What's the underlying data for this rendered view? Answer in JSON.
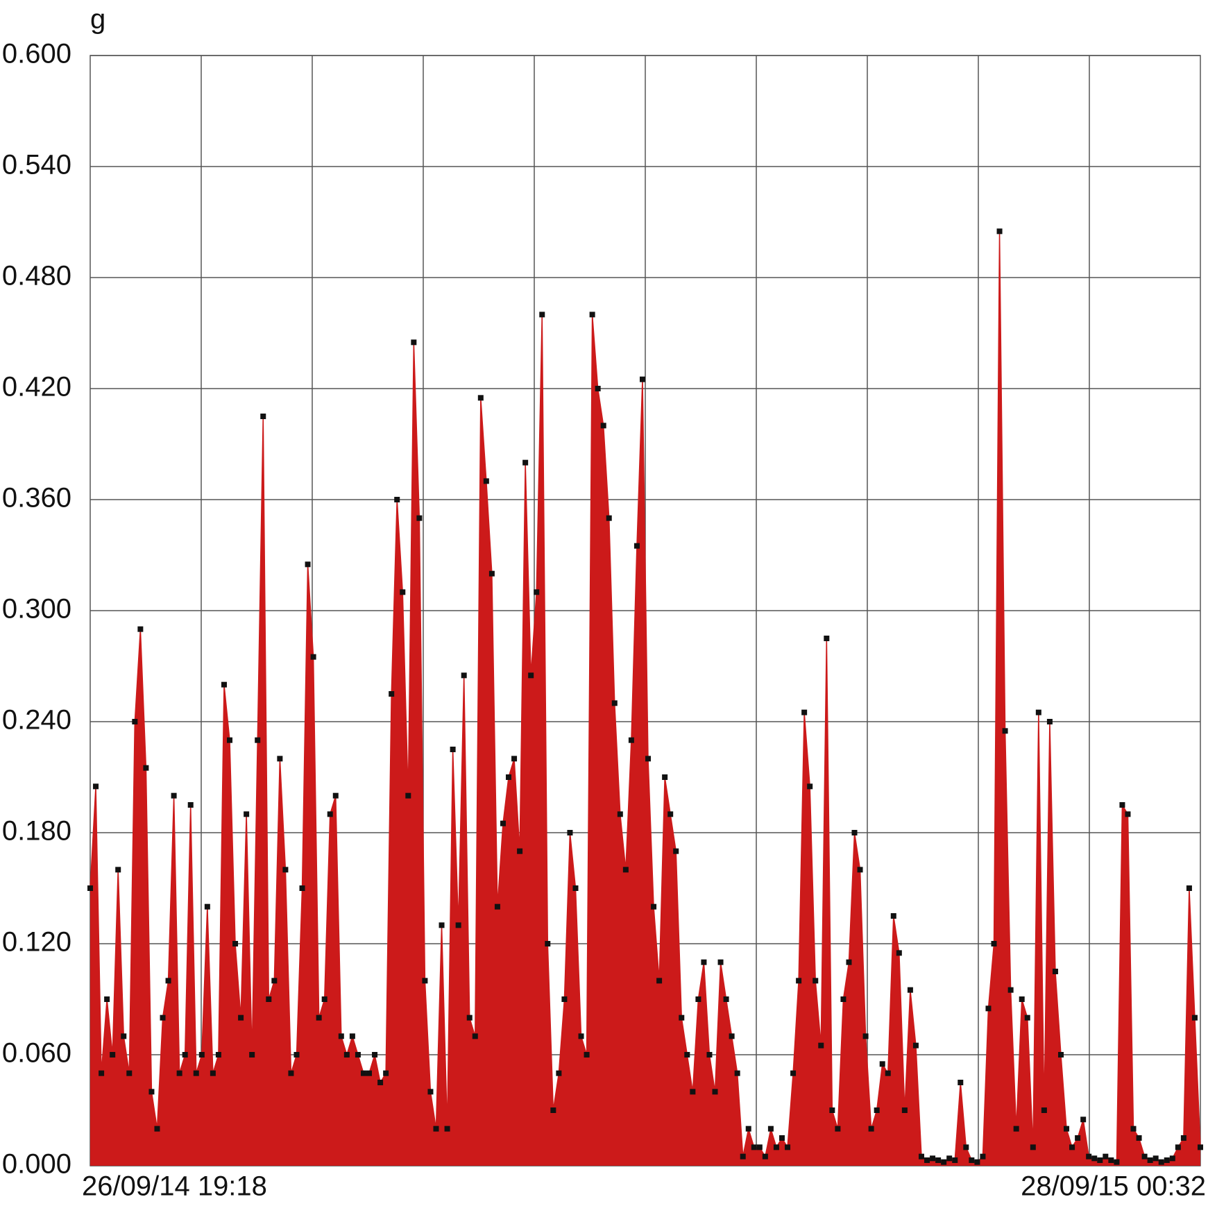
{
  "chart_data": {
    "type": "line",
    "title": "g",
    "categories": [
      "26/09/14 19:18",
      null,
      null,
      null,
      null,
      null,
      null,
      null,
      null,
      null,
      null,
      null,
      null,
      null,
      null,
      null,
      null,
      null,
      null,
      null,
      null,
      null,
      null,
      null,
      null,
      null,
      null,
      null,
      null,
      null,
      null,
      null,
      null,
      null,
      null,
      null,
      null,
      null,
      null,
      null,
      null,
      null,
      null,
      null,
      null,
      null,
      null,
      null,
      null,
      null,
      null,
      null,
      null,
      null,
      null,
      null,
      null,
      null,
      null,
      null,
      null,
      null,
      null,
      null,
      null,
      null,
      null,
      null,
      null,
      null,
      null,
      null,
      null,
      null,
      null,
      null,
      null,
      null,
      null,
      null,
      null,
      null,
      null,
      null,
      null,
      null,
      null,
      null,
      null,
      null,
      null,
      null,
      null,
      null,
      null,
      null,
      null,
      null,
      null,
      null,
      null,
      null,
      null,
      null,
      null,
      null,
      null,
      null,
      null,
      null,
      null,
      null,
      null,
      null,
      null,
      null,
      null,
      null,
      null,
      null,
      null,
      null,
      null,
      null,
      null,
      null,
      null,
      null,
      null,
      null,
      null,
      null,
      null,
      null,
      null,
      null,
      null,
      null,
      null,
      null,
      null,
      null,
      null,
      null,
      null,
      null,
      null,
      null,
      null,
      null,
      null,
      null,
      null,
      null,
      null,
      null,
      null,
      null,
      null,
      null,
      null,
      null,
      null,
      null,
      null,
      null,
      null,
      null,
      null,
      null,
      null,
      null,
      null,
      null,
      null,
      null,
      null,
      null,
      null,
      null,
      null,
      null,
      null,
      null,
      null,
      null,
      null,
      null,
      null,
      null,
      null,
      null,
      null,
      null,
      null,
      null,
      null,
      null,
      null,
      "28/09/15 00:32"
    ],
    "values": [
      0.15,
      0.205,
      0.05,
      0.09,
      0.06,
      0.16,
      0.07,
      0.05,
      0.24,
      0.29,
      0.215,
      0.04,
      0.02,
      0.08,
      0.1,
      0.2,
      0.05,
      0.06,
      0.195,
      0.05,
      0.06,
      0.14,
      0.05,
      0.06,
      0.26,
      0.23,
      0.12,
      0.08,
      0.19,
      0.06,
      0.23,
      0.405,
      0.09,
      0.1,
      0.22,
      0.16,
      0.05,
      0.06,
      0.15,
      0.325,
      0.275,
      0.08,
      0.09,
      0.19,
      0.2,
      0.07,
      0.06,
      0.07,
      0.06,
      0.05,
      0.05,
      0.06,
      0.045,
      0.05,
      0.255,
      0.36,
      0.31,
      0.2,
      0.445,
      0.35,
      0.1,
      0.04,
      0.02,
      0.13,
      0.02,
      0.225,
      0.13,
      0.265,
      0.08,
      0.07,
      0.415,
      0.37,
      0.32,
      0.14,
      0.185,
      0.21,
      0.22,
      0.17,
      0.38,
      0.265,
      0.31,
      0.46,
      0.12,
      0.03,
      0.05,
      0.09,
      0.18,
      0.15,
      0.07,
      0.06,
      0.46,
      0.42,
      0.4,
      0.35,
      0.25,
      0.19,
      0.16,
      0.23,
      0.335,
      0.425,
      0.22,
      0.14,
      0.1,
      0.21,
      0.19,
      0.17,
      0.08,
      0.06,
      0.04,
      0.09,
      0.11,
      0.06,
      0.04,
      0.11,
      0.09,
      0.07,
      0.05,
      0.005,
      0.02,
      0.01,
      0.01,
      0.005,
      0.02,
      0.01,
      0.015,
      0.01,
      0.05,
      0.1,
      0.245,
      0.205,
      0.1,
      0.065,
      0.285,
      0.03,
      0.02,
      0.09,
      0.11,
      0.18,
      0.16,
      0.07,
      0.02,
      0.03,
      0.055,
      0.05,
      0.135,
      0.115,
      0.03,
      0.095,
      0.065,
      0.005,
      0.003,
      0.004,
      0.003,
      0.002,
      0.004,
      0.003,
      0.045,
      0.01,
      0.003,
      0.002,
      0.005,
      0.085,
      0.12,
      0.505,
      0.235,
      0.095,
      0.02,
      0.09,
      0.08,
      0.01,
      0.245,
      0.03,
      0.24,
      0.105,
      0.06,
      0.02,
      0.01,
      0.015,
      0.025,
      0.005,
      0.004,
      0.003,
      0.005,
      0.003,
      0.002,
      0.195,
      0.19,
      0.02,
      0.015,
      0.005,
      0.003,
      0.004,
      0.002,
      0.003,
      0.004,
      0.01,
      0.015,
      0.15,
      0.08,
      0.01
    ],
    "color": "#cc1a1a",
    "marker_color": "#111111",
    "ylim": [
      0,
      0.6
    ],
    "yticks": [
      {
        "value": 0,
        "label": "0.000"
      },
      {
        "value": 0.06,
        "label": "0.060"
      },
      {
        "value": 0.12,
        "label": "0.120"
      },
      {
        "value": 0.18,
        "label": "0.180"
      },
      {
        "value": 0.24,
        "label": "0.240"
      },
      {
        "value": 0.3,
        "label": "0.300"
      },
      {
        "value": 0.36,
        "label": "0.360"
      },
      {
        "value": 0.42,
        "label": "0.420"
      },
      {
        "value": 0.48,
        "label": "0.480"
      },
      {
        "value": 0.54,
        "label": "0.540"
      },
      {
        "value": 0.6,
        "label": "0.600"
      }
    ],
    "grid": true
  }
}
